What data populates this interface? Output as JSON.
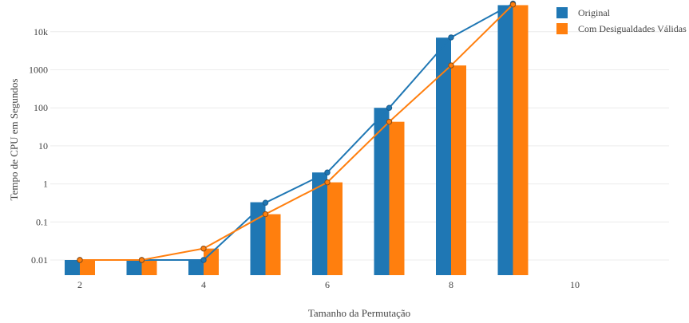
{
  "chart_data": {
    "type": "bar",
    "xlabel": "Tamanho da Permutação",
    "ylabel": "Tempo de CPU em Segundos",
    "y_scale": "log",
    "grid": true,
    "legend_position": "top-right",
    "x_ticks": [
      2,
      4,
      6,
      8,
      10
    ],
    "x_range": [
      1.5,
      11.0
    ],
    "y_ticks": [
      {
        "value": 0.01,
        "label": "0.01"
      },
      {
        "value": 0.1,
        "label": "0.1"
      },
      {
        "value": 1,
        "label": "1"
      },
      {
        "value": 10,
        "label": "10"
      },
      {
        "value": 100,
        "label": "100"
      },
      {
        "value": 1000,
        "label": "1000"
      },
      {
        "value": 10000,
        "label": "10k"
      }
    ],
    "x": [
      2,
      3,
      4,
      5,
      6,
      7,
      8,
      9
    ],
    "series": [
      {
        "name": "Original",
        "color": "#1f77b4",
        "bar_values": [
          0.01,
          0.01,
          0.01,
          0.33,
          2.0,
          100,
          7000,
          50000
        ],
        "line_values": [
          0.01,
          0.01,
          0.01,
          0.32,
          2.0,
          100,
          7100,
          55000
        ]
      },
      {
        "name": "Com Desigualdades Válidas",
        "color": "#ff7f0e",
        "bar_values": [
          0.01,
          0.01,
          0.02,
          0.16,
          1.1,
          43,
          1300,
          50000
        ],
        "line_values": [
          0.01,
          0.01,
          0.02,
          0.16,
          1.1,
          43,
          1300,
          52000
        ]
      }
    ]
  }
}
